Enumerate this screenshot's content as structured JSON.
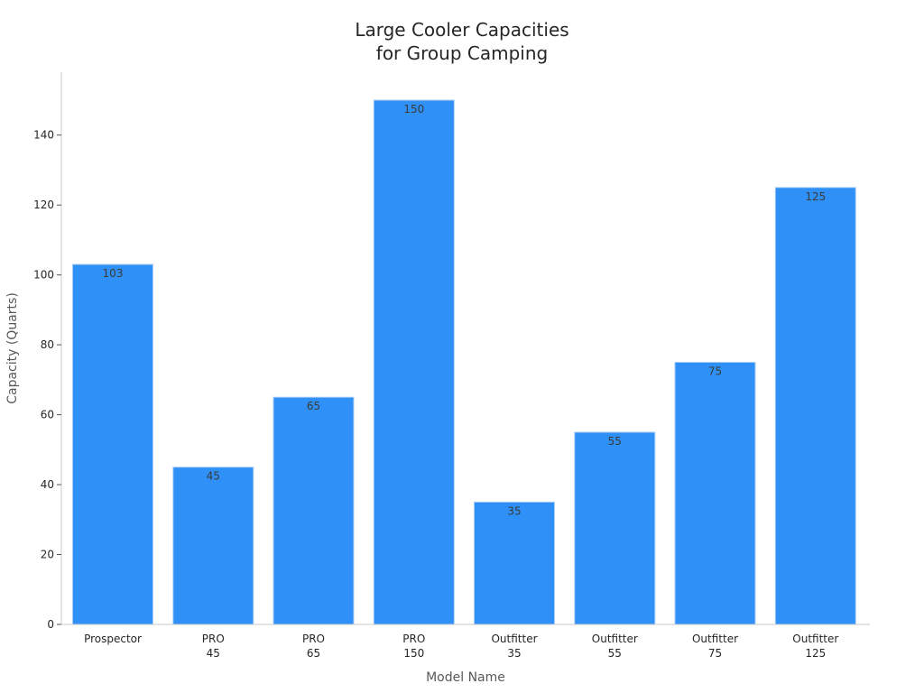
{
  "chart_data": {
    "type": "bar",
    "title": [
      "Large Cooler Capacities",
      "for Group Camping"
    ],
    "xlabel": "Model Name",
    "ylabel": "Capacity (Quarts)",
    "categories": [
      [
        "Prospector"
      ],
      [
        "PRO",
        "45"
      ],
      [
        "PRO",
        "65"
      ],
      [
        "PRO",
        "150"
      ],
      [
        "Outfitter",
        "35"
      ],
      [
        "Outfitter",
        "55"
      ],
      [
        "Outfitter",
        "75"
      ],
      [
        "Outfitter",
        "125"
      ]
    ],
    "values": [
      103,
      45,
      65,
      150,
      35,
      55,
      75,
      125
    ],
    "data_labels": [
      "103",
      "45",
      "65",
      "150",
      "35",
      "55",
      "75",
      "125"
    ],
    "ylim": [
      0,
      158
    ],
    "yticks": [
      0,
      20,
      40,
      60,
      80,
      100,
      120,
      140
    ],
    "bar_color": "#2f91f7",
    "grid": false,
    "legend": "none"
  }
}
